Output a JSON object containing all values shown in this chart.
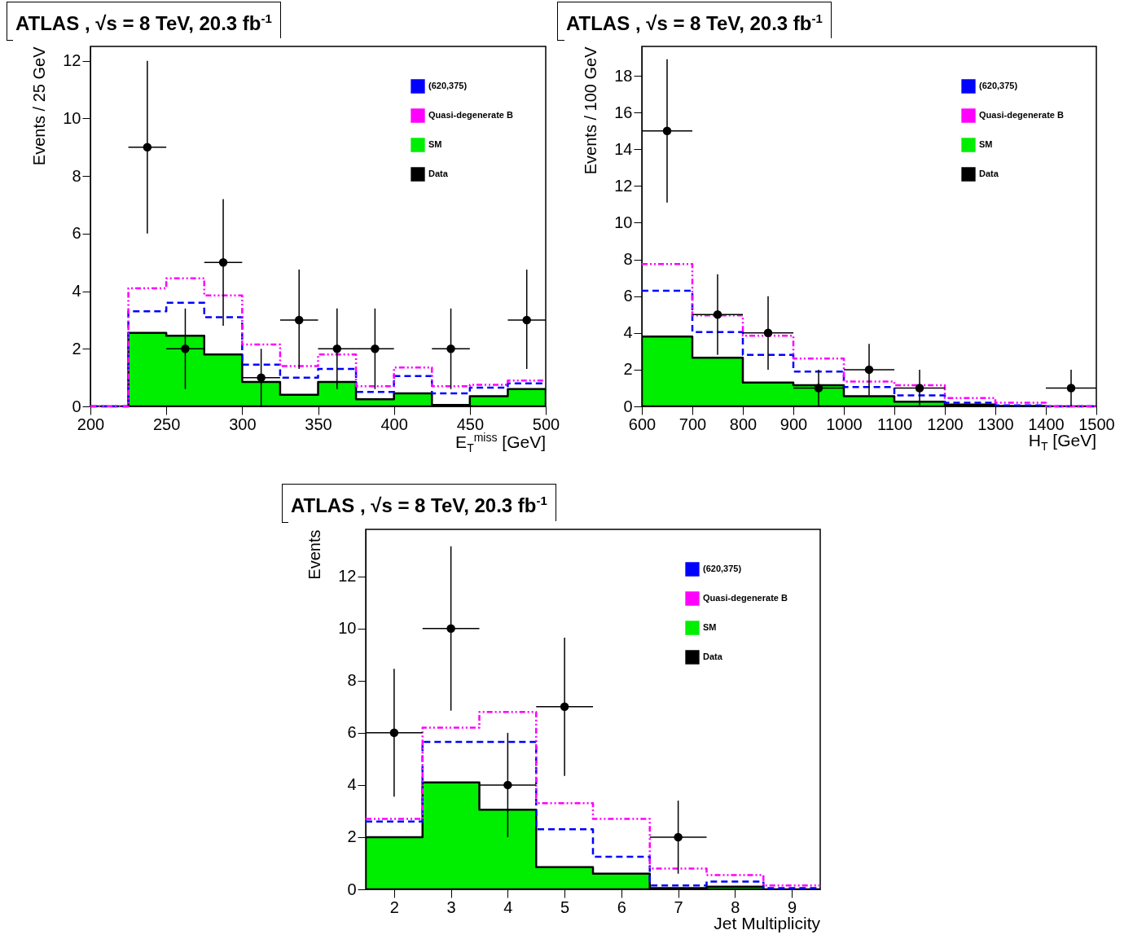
{
  "chart_data": [
    {
      "type": "step",
      "title": "ATLAS , √s = 8 TeV, 20.3 fb$^{-1}$",
      "xlabel": "E$_{T}$$^{miss}$ [GeV]",
      "ylabel": "Events / 25 GeV",
      "x": [
        200,
        225,
        250,
        275,
        300,
        325,
        350,
        375,
        400,
        425,
        450,
        475,
        500
      ],
      "xlim": [
        200,
        500
      ],
      "ylim": [
        0,
        12.5
      ],
      "xticks": [
        200,
        250,
        300,
        350,
        400,
        450,
        500
      ],
      "yticks": [
        0,
        2,
        4,
        6,
        8,
        10,
        12
      ],
      "grid": false,
      "legend": "top right",
      "series": [
        {
          "name": "(620,375)",
          "color": "#0000ff",
          "line_style": "dashed",
          "values": [
            0,
            3.3,
            3.6,
            3.1,
            1.45,
            1.0,
            1.3,
            0.5,
            1.05,
            0.45,
            0.65,
            0.8,
            0.8
          ]
        },
        {
          "name": "Quasi-degenerate B",
          "color": "#ff00ff",
          "line_style": "dotted",
          "values": [
            0,
            4.1,
            4.45,
            3.85,
            2.15,
            1.4,
            1.8,
            0.7,
            1.35,
            0.7,
            0.75,
            0.9,
            0.9
          ]
        },
        {
          "type": "area",
          "name": "SM",
          "color": "#00ee00",
          "values": [
            0,
            2.55,
            2.45,
            1.8,
            0.85,
            0.4,
            0.85,
            0.25,
            0.45,
            0.05,
            0.35,
            0.6,
            0.6
          ]
        },
        {
          "type": "scatter",
          "name": "Data",
          "color": "#000000",
          "marker": "circle",
          "x": [
            237.5,
            262.5,
            287.5,
            312.5,
            337.5,
            362.5,
            387.5,
            437.5,
            487.5
          ],
          "values": [
            9,
            2,
            5,
            1,
            3,
            2,
            2,
            2,
            3
          ],
          "errors": [
            [
              6,
              12
            ],
            [
              0.6,
              3.4
            ],
            [
              2.8,
              7.2
            ],
            [
              0,
              2
            ],
            [
              1.3,
              4.75
            ],
            [
              0.6,
              3.4
            ],
            [
              0.6,
              3.4
            ],
            [
              0.6,
              3.4
            ],
            [
              1.3,
              4.75
            ]
          ],
          "xerrors": [
            12.5,
            12.5,
            12.5,
            12.5,
            12.5,
            12.5,
            12.5,
            12.5,
            12.5
          ]
        }
      ]
    },
    {
      "type": "step",
      "title": "ATLAS , √s = 8 TeV, 20.3 fb$^{-1}$",
      "xlabel": "H$_{T}$ [GeV]",
      "ylabel": "Events / 100 GeV",
      "x": [
        600,
        700,
        800,
        900,
        1000,
        1100,
        1200,
        1300,
        1400,
        1500
      ],
      "xlim": [
        600,
        1500
      ],
      "ylim": [
        0,
        19.6
      ],
      "xticks": [
        600,
        700,
        800,
        900,
        1000,
        1100,
        1200,
        1300,
        1400,
        1500
      ],
      "yticks": [
        0,
        2,
        4,
        6,
        8,
        10,
        12,
        14,
        16,
        18
      ],
      "grid": false,
      "legend": "top right",
      "series": [
        {
          "name": "(620,375)",
          "color": "#0000ff",
          "line_style": "dashed",
          "values": [
            6.3,
            4.05,
            2.8,
            1.9,
            1.05,
            0.6,
            0.2,
            0.05,
            0,
            0
          ]
        },
        {
          "name": "Quasi-degenerate B",
          "color": "#ff00ff",
          "line_style": "dotted",
          "values": [
            7.75,
            4.95,
            3.85,
            2.6,
            1.35,
            1.15,
            0.45,
            0.2,
            0,
            0
          ]
        },
        {
          "type": "area",
          "name": "SM",
          "color": "#00ee00",
          "values": [
            3.8,
            2.65,
            1.3,
            1.15,
            0.55,
            0.25,
            0.1,
            0.02,
            0,
            0
          ]
        },
        {
          "type": "scatter",
          "name": "Data",
          "color": "#000000",
          "marker": "circle",
          "x": [
            650,
            750,
            850,
            950,
            1050,
            1150,
            1450
          ],
          "values": [
            15,
            5,
            4,
            1,
            2,
            1,
            1
          ],
          "errors": [
            [
              11.1,
              18.9
            ],
            [
              2.8,
              7.2
            ],
            [
              2,
              6
            ],
            [
              0,
              2
            ],
            [
              0.6,
              3.4
            ],
            [
              0,
              2
            ],
            [
              0,
              2
            ]
          ],
          "xerrors": [
            50,
            50,
            50,
            50,
            50,
            50,
            50
          ]
        }
      ]
    },
    {
      "type": "step",
      "title": "ATLAS , √s = 8 TeV, 20.3 fb$^{-1}$",
      "xlabel": "Jet Multiplicity",
      "ylabel": "Events",
      "x": [
        1.5,
        2.5,
        3.5,
        4.5,
        5.5,
        6.5,
        7.5,
        8.5,
        9.5
      ],
      "xlim": [
        1.5,
        9.5
      ],
      "ylim": [
        0,
        13.8
      ],
      "xticks": [
        2,
        3,
        4,
        5,
        6,
        7,
        8,
        9
      ],
      "yticks": [
        0,
        2,
        4,
        6,
        8,
        10,
        12
      ],
      "grid": false,
      "legend": "top right",
      "series": [
        {
          "name": "(620,375)",
          "color": "#0000ff",
          "line_style": "dashed",
          "values": [
            2.6,
            5.65,
            5.65,
            2.3,
            1.25,
            0.15,
            0.3,
            0.05,
            0.05
          ]
        },
        {
          "name": "Quasi-degenerate B",
          "color": "#ff00ff",
          "line_style": "dotted",
          "values": [
            2.7,
            6.2,
            6.8,
            3.3,
            2.7,
            0.8,
            0.55,
            0.15,
            0.15
          ]
        },
        {
          "type": "area",
          "name": "SM",
          "color": "#00ee00",
          "values": [
            2.0,
            4.1,
            3.05,
            0.85,
            0.6,
            0.05,
            0.1,
            0,
            0
          ]
        },
        {
          "type": "scatter",
          "name": "Data",
          "color": "#000000",
          "marker": "circle",
          "x": [
            2,
            3,
            4,
            5,
            7
          ],
          "values": [
            6,
            10,
            4,
            7,
            2
          ],
          "errors": [
            [
              3.55,
              8.45
            ],
            [
              6.85,
              13.15
            ],
            [
              2,
              6
            ],
            [
              4.35,
              9.65
            ],
            [
              0.6,
              3.4
            ]
          ],
          "xerrors": [
            0.5,
            0.5,
            0.5,
            0.5,
            0.5
          ]
        }
      ]
    }
  ]
}
